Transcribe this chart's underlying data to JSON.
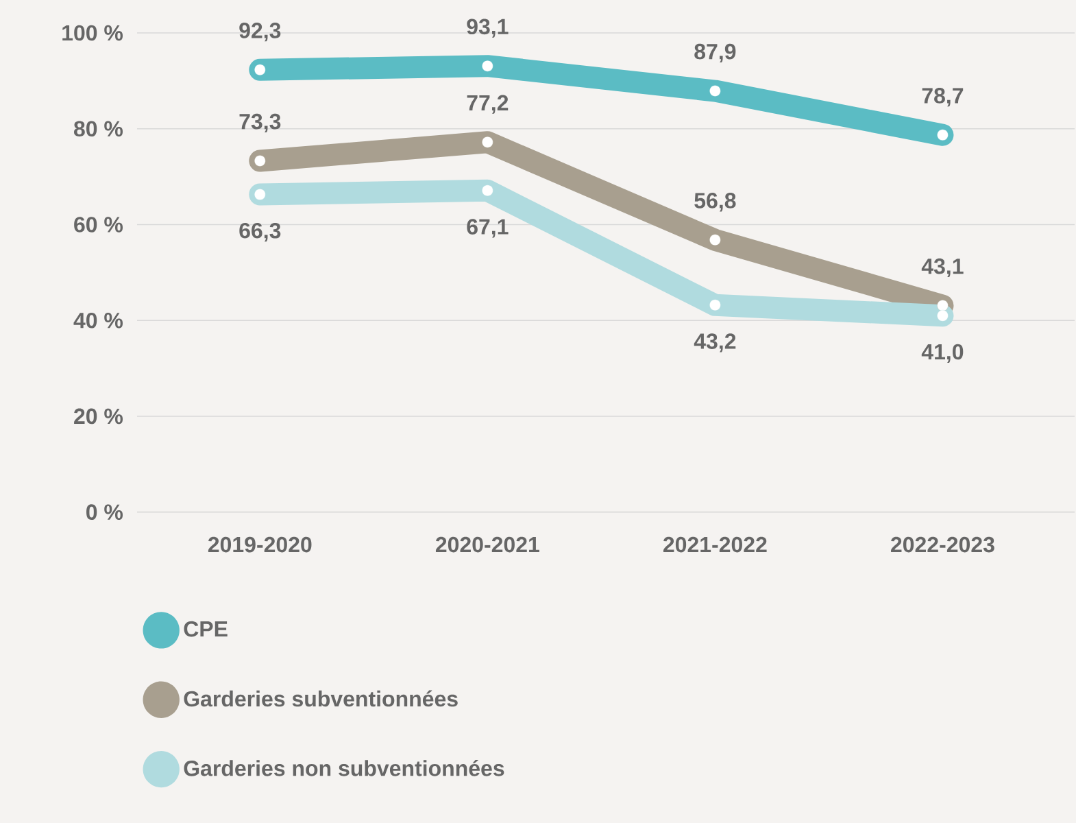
{
  "chart_data": {
    "type": "line",
    "categories": [
      "2019-2020",
      "2020-2021",
      "2021-2022",
      "2022-2023"
    ],
    "series": [
      {
        "name": "CPE",
        "color": "#5bbcc4",
        "values": [
          92.3,
          93.1,
          87.9,
          78.7
        ],
        "value_labels": [
          "92,3",
          "93,1",
          "87,9",
          "78,7"
        ]
      },
      {
        "name": "Garderies subventionnées",
        "color": "#a89f8f",
        "values": [
          73.3,
          77.2,
          56.8,
          43.1
        ],
        "value_labels": [
          "73,3",
          "77,2",
          "56,8",
          "43,1"
        ]
      },
      {
        "name": "Garderies non subventionnées",
        "color": "#b0dbdf",
        "values": [
          66.3,
          67.1,
          43.2,
          41.0
        ],
        "value_labels": [
          "66,3",
          "67,1",
          "43,2",
          "41,0"
        ]
      }
    ],
    "ylim": [
      0,
      100
    ],
    "yticks": [
      {
        "value": 0,
        "label": "0 %"
      },
      {
        "value": 20,
        "label": "20 %"
      },
      {
        "value": 40,
        "label": "40 %"
      },
      {
        "value": 60,
        "label": "60 %"
      },
      {
        "value": 80,
        "label": "80 %"
      },
      {
        "value": 100,
        "label": "100 %"
      }
    ],
    "grid": "y",
    "legend": "bottom",
    "marker": "circle",
    "line_style": "solid"
  }
}
